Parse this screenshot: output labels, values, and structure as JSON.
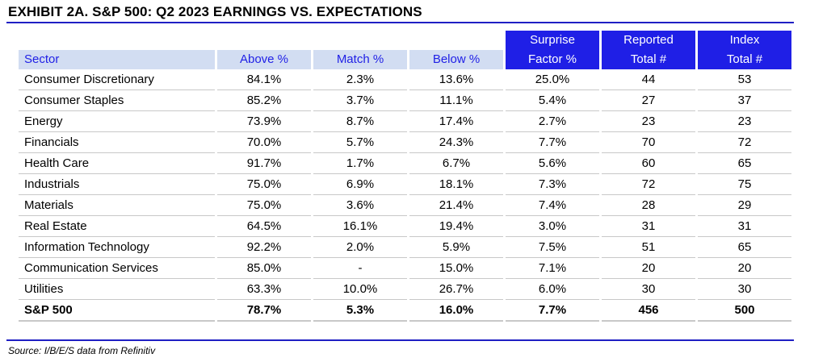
{
  "title": "EXHIBIT 2A.  S&P 500: Q2 2023 EARNINGS VS. EXPECTATIONS",
  "header_top": [
    "",
    "",
    "",
    "",
    "Surprise",
    "Reported",
    "Index"
  ],
  "header_bottom": [
    "Sector",
    "Above %",
    "Match %",
    "Below %",
    "Factor %",
    "Total #",
    "Total #"
  ],
  "rows": [
    [
      "Consumer Discretionary",
      "84.1%",
      "2.3%",
      "13.6%",
      "25.0%",
      "44",
      "53"
    ],
    [
      "Consumer Staples",
      "85.2%",
      "3.7%",
      "11.1%",
      "5.4%",
      "27",
      "37"
    ],
    [
      "Energy",
      "73.9%",
      "8.7%",
      "17.4%",
      "2.7%",
      "23",
      "23"
    ],
    [
      "Financials",
      "70.0%",
      "5.7%",
      "24.3%",
      "7.7%",
      "70",
      "72"
    ],
    [
      "Health Care",
      "91.7%",
      "1.7%",
      "6.7%",
      "5.6%",
      "60",
      "65"
    ],
    [
      "Industrials",
      "75.0%",
      "6.9%",
      "18.1%",
      "7.3%",
      "72",
      "75"
    ],
    [
      "Materials",
      "75.0%",
      "3.6%",
      "21.4%",
      "7.4%",
      "28",
      "29"
    ],
    [
      "Real Estate",
      "64.5%",
      "16.1%",
      "19.4%",
      "3.0%",
      "31",
      "31"
    ],
    [
      "Information Technology",
      "92.2%",
      "2.0%",
      "5.9%",
      "7.5%",
      "51",
      "65"
    ],
    [
      "Communication Services",
      "85.0%",
      "-",
      "15.0%",
      "7.1%",
      "20",
      "20"
    ],
    [
      "Utilities",
      "63.3%",
      "10.0%",
      "26.7%",
      "6.0%",
      "30",
      "30"
    ]
  ],
  "total_row": [
    "S&P 500",
    "78.7%",
    "5.3%",
    "16.0%",
    "7.7%",
    "456",
    "500"
  ],
  "source": "Source: I/B/E/S data from Refinitiv",
  "colors": {
    "accent": "#1f1fe6",
    "header_bg": "#d2ddf2",
    "rule": "#1f1fc4"
  }
}
